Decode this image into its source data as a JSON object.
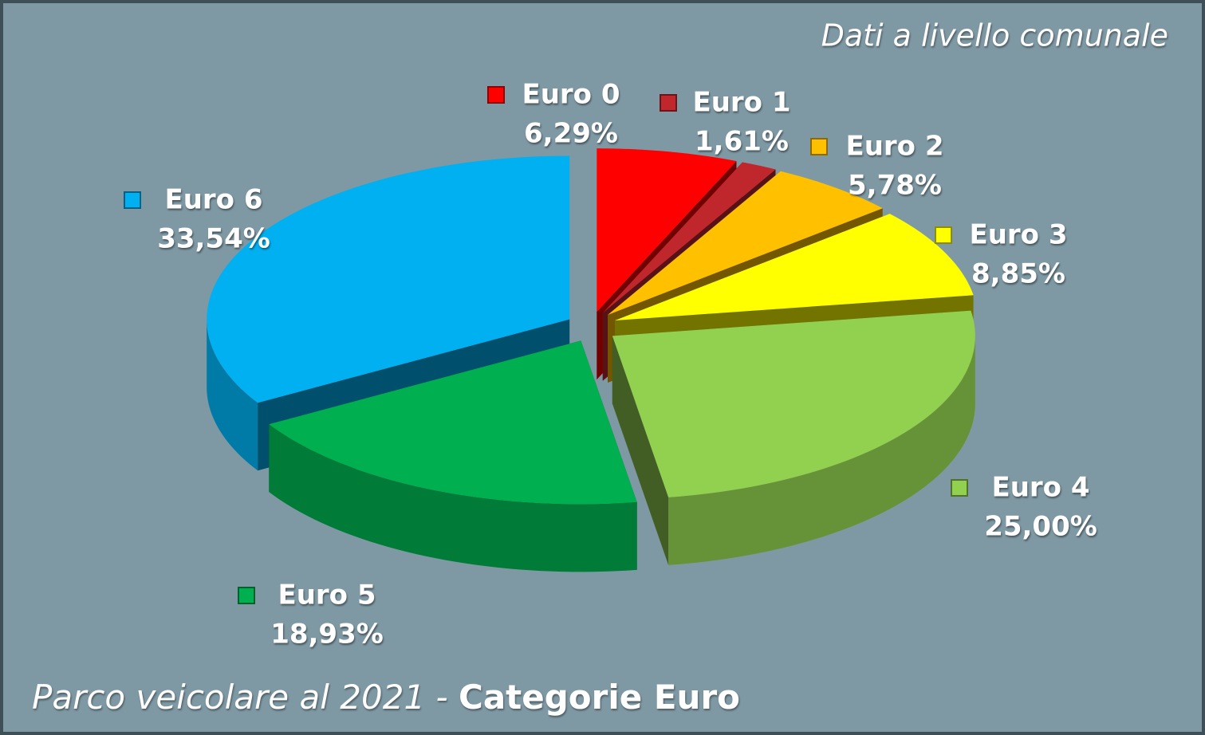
{
  "chart_data": {
    "type": "pie",
    "title": "Parco veicolare al 2021 -",
    "title_bold": "Categorie Euro",
    "subtitle": "Dati a livello comunale",
    "categories": [
      "Euro 0",
      "Euro 1",
      "Euro 2",
      "Euro 3",
      "Euro 4",
      "Euro 5",
      "Euro 6"
    ],
    "values": [
      6.29,
      1.61,
      5.78,
      8.85,
      25.0,
      18.93,
      33.54
    ],
    "value_labels": [
      "6,29%",
      "1,61%",
      "5,78%",
      "8,85%",
      "25,00%",
      "18,93%",
      "33,54%"
    ],
    "colors": [
      "#ff0000",
      "#c0272d",
      "#ffc000",
      "#ffff00",
      "#92d050",
      "#00b050",
      "#00b0f0"
    ]
  }
}
